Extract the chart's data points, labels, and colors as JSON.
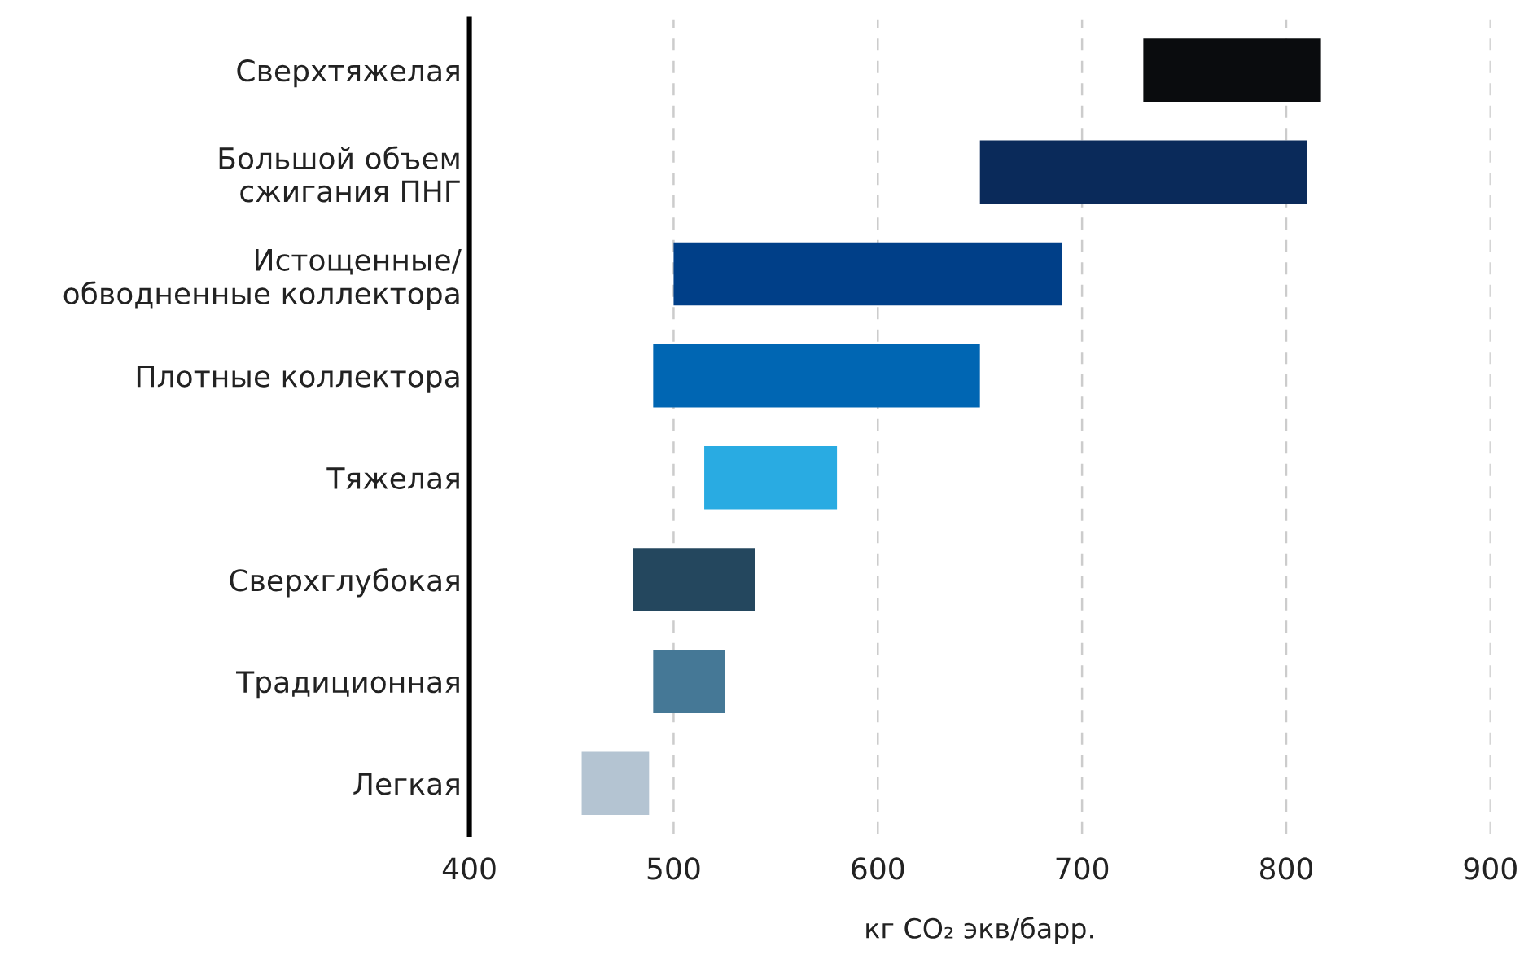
{
  "chart_data": {
    "type": "bar",
    "orientation": "horizontal",
    "xlabel": "кг CO₂ экв/барр.",
    "categories": [
      "Сверхтяжелая",
      "Большой объем\nсжигания ПНГ",
      "Истощенные/\nобводненные коллектора",
      "Плотные коллектора",
      "Тяжелая",
      "Сверхглубокая",
      "Традиционная",
      "Легкая"
    ],
    "base": [
      730,
      650,
      500,
      490,
      515,
      480,
      490,
      455
    ],
    "values": [
      87,
      160,
      190,
      160,
      65,
      60,
      35,
      33
    ],
    "colors": [
      "#0a0c0e",
      "#0a2a5a",
      "#003f88",
      "#0066b3",
      "#29abe2",
      "#24475e",
      "#457896",
      "#b4c4d2"
    ],
    "xlim": [
      400,
      900
    ],
    "xticks": [
      400,
      500,
      600,
      700,
      800,
      900
    ],
    "grid": "x"
  }
}
